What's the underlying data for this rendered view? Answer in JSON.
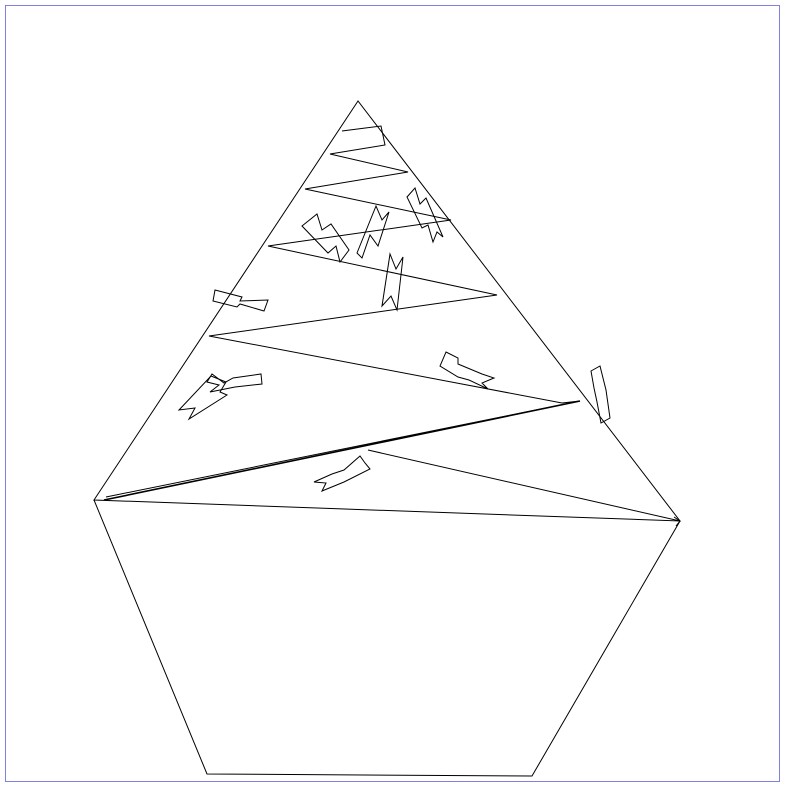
{
  "colors": {
    "frame_border": "#8080e0",
    "background": "#ffffff",
    "ink": "#000000"
  }
}
